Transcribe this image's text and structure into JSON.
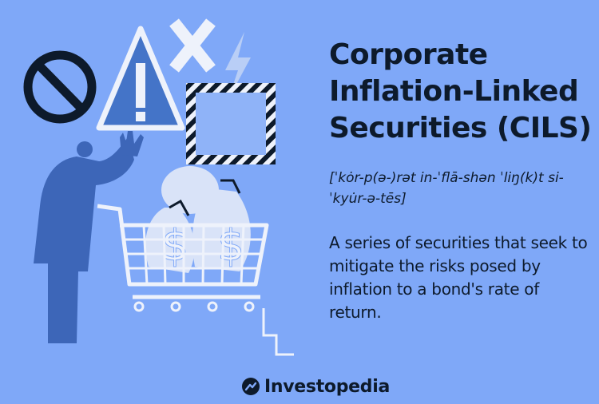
{
  "header": {
    "title": "Corporate Inflation-Linked Securities (CILS)"
  },
  "pronunciation": "[ˈkȯr-p(ə-)rət in-ˈflā-shən ˈliŋ(k)t si-ˈkyu̇r-ə-tēs]",
  "definition": "A series of securities that seek to mitigate the risks posed by inflation to a bond's rate of return.",
  "brand": {
    "name": "Investopedia",
    "icon": "investopedia-logo-icon"
  },
  "illustration": {
    "icons": [
      "no-entry-icon",
      "warning-triangle-icon",
      "x-mark-icon",
      "lightning-bolt-icon",
      "hazard-frame-icon",
      "person-figure",
      "shopping-cart-icon",
      "money-bag-icon"
    ],
    "colors": {
      "background": "#7fa8f8",
      "dark_blue": "#0d1a2b",
      "figure_blue": "#3d66b8",
      "light": "#eef2fb"
    }
  }
}
